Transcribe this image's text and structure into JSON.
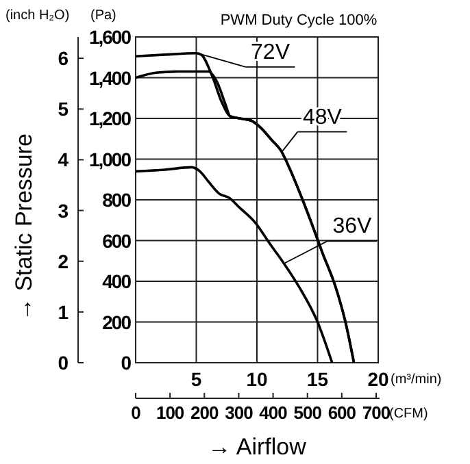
{
  "chart_data": {
    "type": "line",
    "title": "PWM Duty Cycle 100%",
    "xlabel": "→ Airflow",
    "ylabel": "→ Static Pressure",
    "y2label": "(Pa)",
    "x2label": "(CFM)",
    "annotations": [
      "(inch H₂O)",
      "(m³/min)"
    ],
    "xlim": [
      0,
      20
    ],
    "xticks": [
      5,
      10,
      15,
      20
    ],
    "y2lim": [
      0,
      1600
    ],
    "y2ticks": [
      0,
      200,
      400,
      600,
      800,
      {
        "value": 1000,
        "label": "1,000"
      },
      {
        "value": 1200,
        "label": "1,200"
      },
      {
        "value": 1400,
        "label": "1,400"
      },
      {
        "value": 1600,
        "label": "1,600"
      }
    ],
    "ylim": [
      0,
      6.42
    ],
    "yticks": [
      0,
      1,
      2,
      3,
      4,
      5,
      6
    ],
    "x2lim": [
      0,
      706
    ],
    "x2ticks": [
      0,
      100,
      200,
      300,
      400,
      500,
      600,
      700
    ],
    "grid": true,
    "legend": "top",
    "marker": "none",
    "line_style": "solid",
    "series": [
      {
        "name": "72V",
        "color": "#000000",
        "axis": "y2",
        "x": [
          0,
          2.4,
          5,
          5.4,
          6.3,
          7.1,
          7.8,
          8.6,
          9.5,
          10.3,
          11.2,
          12,
          12.8,
          13.7,
          14.6,
          15.4,
          16.5,
          17.3,
          18
        ],
        "values": [
          1505,
          1513,
          1520,
          1513,
          1410,
          1280,
          1210,
          1200,
          1190,
          1155,
          1095,
          1040,
          940,
          810,
          670,
          540,
          370,
          200,
          0
        ]
      },
      {
        "name": "48V",
        "color": "#000000",
        "axis": "y2",
        "x": [
          0,
          1.8,
          3.5,
          6,
          6.7,
          7.4,
          7.8,
          8.6,
          9.5,
          10.3,
          11.2,
          12,
          12.8,
          13.7,
          14.6,
          15.4,
          16.5,
          17.3,
          18
        ],
        "values": [
          1400,
          1425,
          1430,
          1430,
          1380,
          1270,
          1210,
          1200,
          1190,
          1155,
          1095,
          1040,
          940,
          810,
          670,
          540,
          370,
          200,
          0
        ]
      },
      {
        "name": "36V",
        "color": "#000000",
        "axis": "y2",
        "x": [
          0,
          2.4,
          4.6,
          5.3,
          6,
          6.9,
          7.7,
          8.6,
          9.9,
          11,
          12.2,
          13.5,
          15,
          16.2
        ],
        "values": [
          940,
          948,
          960,
          940,
          890,
          830,
          810,
          760,
          685,
          590,
          490,
          370,
          200,
          0
        ]
      }
    ]
  }
}
